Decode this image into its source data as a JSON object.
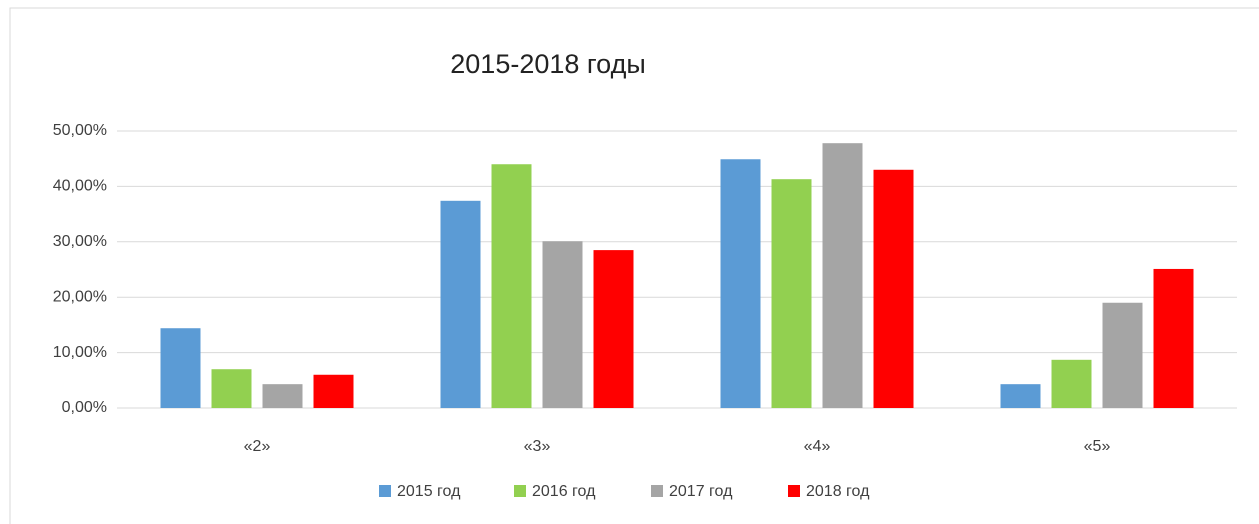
{
  "chart_data": {
    "type": "bar",
    "title": "2015-2018 годы",
    "categories": [
      "«2»",
      "«3»",
      "«4»",
      "«5»"
    ],
    "series": [
      {
        "name": "2015 год",
        "color": "#5b9bd5",
        "values": [
          14.4,
          37.4,
          44.9,
          4.3
        ]
      },
      {
        "name": "2016 год",
        "color": "#92d050",
        "values": [
          7.0,
          44.0,
          41.3,
          8.7
        ]
      },
      {
        "name": "2017 год",
        "color": "#a5a5a5",
        "values": [
          4.3,
          30.1,
          47.8,
          19.0
        ]
      },
      {
        "name": "2018 год",
        "color": "#ff0000",
        "values": [
          6.0,
          28.5,
          43.0,
          25.1
        ]
      }
    ],
    "ylim": [
      0,
      50
    ],
    "yticks": [
      {
        "value": 0,
        "label": "0,00%"
      },
      {
        "value": 10,
        "label": "10,00%"
      },
      {
        "value": 20,
        "label": "20,00%"
      },
      {
        "value": 30,
        "label": "30,00%"
      },
      {
        "value": 40,
        "label": "40,00%"
      },
      {
        "value": 50,
        "label": "50,00%"
      }
    ],
    "grid": true,
    "legend": "bottom"
  }
}
